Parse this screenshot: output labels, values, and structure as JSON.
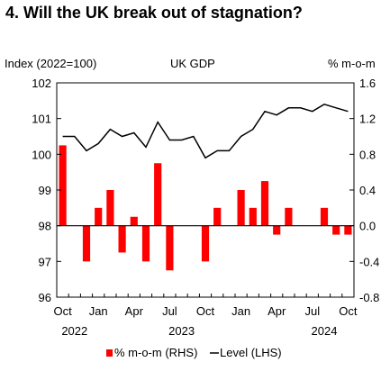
{
  "title": "4. Will the UK break out of stagnation?",
  "chart_data": {
    "type": "bar+line",
    "title": "UK GDP",
    "ylabel_left": "Index (2022=100)",
    "ylabel_right": "% m-o-m",
    "ylim_left": [
      96,
      102
    ],
    "ylim_right": [
      -0.8,
      1.6
    ],
    "yticks_left": [
      "96",
      "97",
      "98",
      "99",
      "100",
      "101",
      "102"
    ],
    "yticks_right": [
      "-0.8",
      "-0.4",
      "0.0",
      "0.4",
      "0.8",
      "1.2",
      "1.6"
    ],
    "yticks_left_values": [
      96,
      97,
      98,
      99,
      100,
      101,
      102
    ],
    "yticks_right_values": [
      -0.8,
      -0.4,
      0.0,
      0.4,
      0.8,
      1.2,
      1.6
    ],
    "x": [
      "Oct 2022",
      "Nov 2022",
      "Dec 2022",
      "Jan 2023",
      "Feb 2023",
      "Mar 2023",
      "Apr 2023",
      "May 2023",
      "Jun 2023",
      "Jul 2023",
      "Aug 2023",
      "Sep 2023",
      "Oct 2023",
      "Nov 2023",
      "Dec 2023",
      "Jan 2024",
      "Feb 2024",
      "Mar 2024",
      "Apr 2024",
      "May 2024",
      "Jun 2024",
      "Jul 2024",
      "Aug 2024",
      "Sep 2024",
      "Oct 2024"
    ],
    "x_tick_labels": [
      {
        "index": 0,
        "label": "Oct"
      },
      {
        "index": 3,
        "label": "Jan"
      },
      {
        "index": 6,
        "label": "Apr"
      },
      {
        "index": 9,
        "label": "Jul"
      },
      {
        "index": 12,
        "label": "Oct"
      },
      {
        "index": 15,
        "label": "Jan"
      },
      {
        "index": 18,
        "label": "Apr"
      },
      {
        "index": 21,
        "label": "Jul"
      },
      {
        "index": 24,
        "label": "Oct"
      }
    ],
    "year_labels": [
      {
        "index": 1,
        "label": "2022"
      },
      {
        "index": 10,
        "label": "2023"
      },
      {
        "index": 22,
        "label": "2024"
      }
    ],
    "series": [
      {
        "name": "% m-o-m (RHS)",
        "type": "bar",
        "axis": "right",
        "color": "#ff0000",
        "values": [
          0.9,
          0.0,
          -0.4,
          0.2,
          0.4,
          -0.3,
          0.1,
          -0.4,
          0.7,
          -0.5,
          0.0,
          0.0,
          -0.4,
          0.2,
          0.0,
          0.4,
          0.2,
          0.5,
          -0.1,
          0.2,
          0.0,
          0.0,
          0.2,
          -0.1,
          -0.1
        ]
      },
      {
        "name": "Level (LHS)",
        "type": "line",
        "axis": "left",
        "color": "#000000",
        "values": [
          100.5,
          100.5,
          100.1,
          100.3,
          100.7,
          100.5,
          100.6,
          100.2,
          100.9,
          100.4,
          100.4,
          100.5,
          99.9,
          100.1,
          100.1,
          100.5,
          100.7,
          101.2,
          101.1,
          101.3,
          101.3,
          101.2,
          101.4,
          101.3,
          101.2
        ]
      }
    ]
  }
}
